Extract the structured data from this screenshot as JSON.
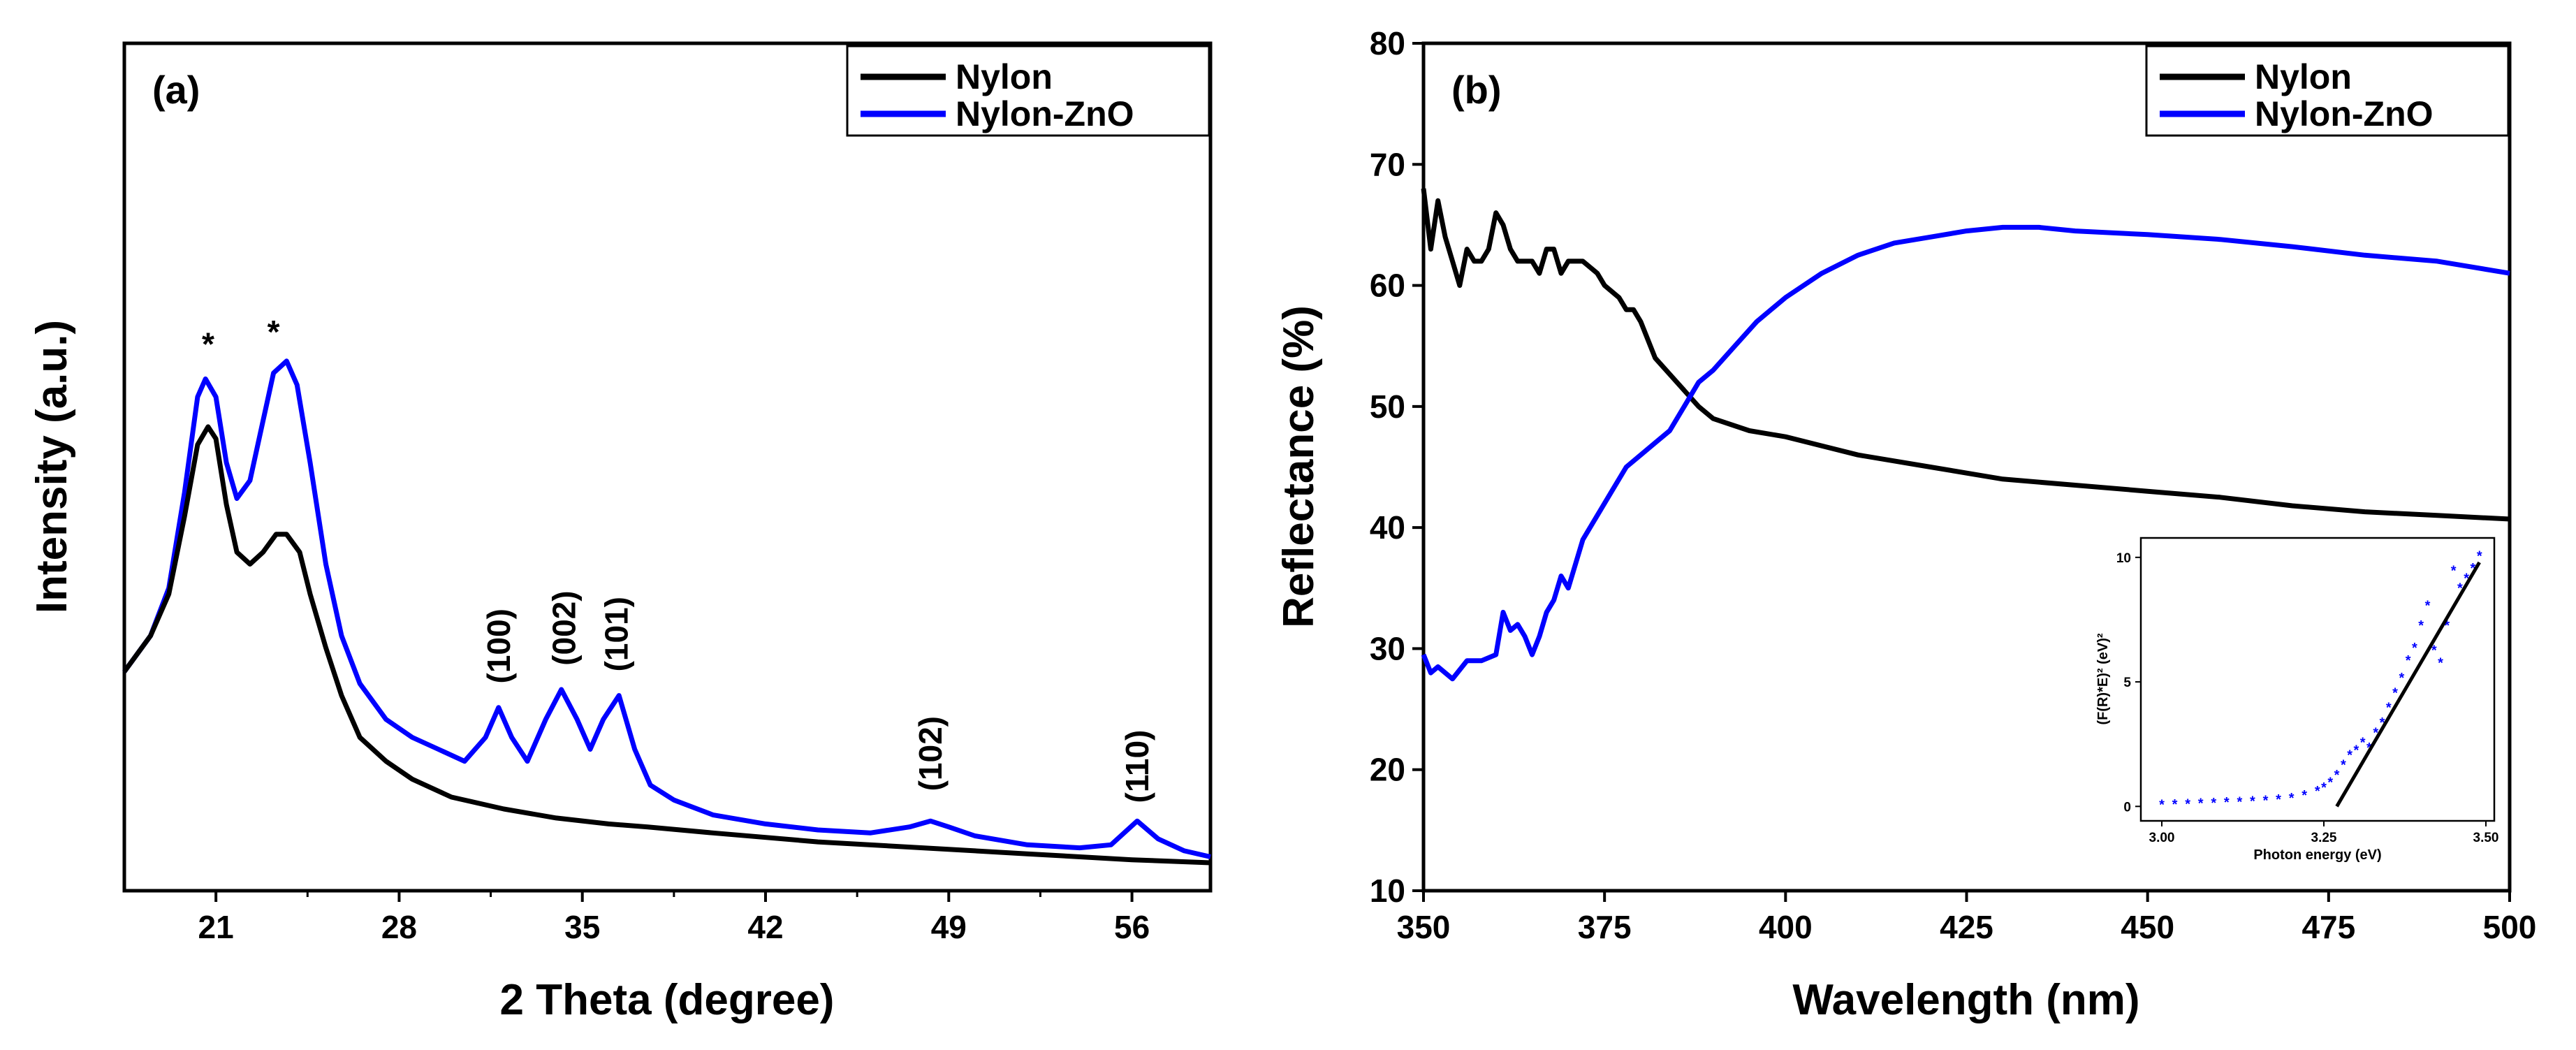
{
  "chart_data": [
    {
      "id": "xrd",
      "type": "line",
      "panel_label": "(a)",
      "xlabel": "2 Theta (degree)",
      "ylabel": "Intensity (a.u.)",
      "xlim": [
        17.5,
        59
      ],
      "ylim": [
        0,
        100
      ],
      "xticks": [
        21,
        28,
        35,
        42,
        49,
        56
      ],
      "xtick_labels": [
        "21",
        "28",
        "35",
        "42",
        "49",
        "56"
      ],
      "show_y_ticks": false,
      "grid": false,
      "legend_position": "top-right",
      "series": [
        {
          "name": "Nylon",
          "color": "#000000",
          "x": [
            17.5,
            18.5,
            19.2,
            19.8,
            20.3,
            20.7,
            21.0,
            21.4,
            21.8,
            22.3,
            22.8,
            23.3,
            23.7,
            24.2,
            24.6,
            25.2,
            25.8,
            26.5,
            27.5,
            28.5,
            30.0,
            32.0,
            34.0,
            36.0,
            37.5,
            40.0,
            44.0,
            48.0,
            52.0,
            56.0,
            59.0
          ],
          "y": [
            32,
            38,
            45,
            58,
            70,
            73,
            71,
            60,
            52,
            50,
            52,
            55,
            55,
            52,
            45,
            36,
            28,
            21,
            17,
            14,
            11,
            9,
            7.5,
            6.5,
            6,
            5,
            3.5,
            2.5,
            1.5,
            0.5,
            0
          ]
        },
        {
          "name": "Nylon-ZnO",
          "color": "#0000ff",
          "x": [
            17.5,
            18.5,
            19.2,
            19.8,
            20.3,
            20.6,
            21.0,
            21.4,
            21.8,
            22.3,
            22.8,
            23.2,
            23.7,
            24.1,
            24.6,
            25.2,
            25.8,
            26.5,
            27.5,
            28.5,
            29.5,
            30.5,
            31.3,
            31.8,
            32.3,
            32.9,
            33.6,
            34.2,
            34.8,
            35.3,
            35.8,
            36.4,
            37.0,
            37.6,
            38.5,
            40.0,
            42.0,
            44.0,
            46.0,
            47.5,
            48.3,
            49.0,
            50.0,
            52.0,
            54.0,
            55.2,
            56.2,
            57.0,
            58.0,
            59.0
          ],
          "y": [
            32,
            38,
            46,
            62,
            78,
            81,
            78,
            67,
            61,
            64,
            74,
            82,
            84,
            80,
            67,
            50,
            38,
            30,
            24,
            21,
            19,
            17,
            21,
            26,
            21,
            17,
            24,
            29,
            24,
            19,
            24,
            28,
            19,
            13,
            10.5,
            8,
            6.5,
            5.5,
            5,
            6,
            7,
            6,
            4.5,
            3,
            2.5,
            3,
            7,
            4,
            2,
            1
          ]
        }
      ],
      "annotations": [
        {
          "text": "*",
          "x": 20.7,
          "y": 85
        },
        {
          "text": "*",
          "x": 23.2,
          "y": 87
        },
        {
          "text": "(100)",
          "x": 31.8,
          "y": 30,
          "rotate": true
        },
        {
          "text": "(002)",
          "x": 34.3,
          "y": 33,
          "rotate": true
        },
        {
          "text": "(101)",
          "x": 36.3,
          "y": 32,
          "rotate": true
        },
        {
          "text": "(102)",
          "x": 48.3,
          "y": 12,
          "rotate": true
        },
        {
          "text": "(110)",
          "x": 56.2,
          "y": 10,
          "rotate": true
        }
      ]
    },
    {
      "id": "reflectance",
      "type": "line",
      "panel_label": "(b)",
      "xlabel": "Wavelength (nm)",
      "ylabel": "Reflectance (%)",
      "xlim": [
        350,
        500
      ],
      "ylim": [
        10,
        80
      ],
      "xticks": [
        350,
        375,
        400,
        425,
        450,
        475,
        500
      ],
      "xtick_labels": [
        "350",
        "375",
        "400",
        "425",
        "450",
        "475",
        "500"
      ],
      "yticks": [
        10,
        20,
        30,
        40,
        50,
        60,
        70,
        80
      ],
      "ytick_labels": [
        "10",
        "20",
        "30",
        "40",
        "50",
        "60",
        "70",
        "80"
      ],
      "grid": false,
      "legend_position": "top-right",
      "series": [
        {
          "name": "Nylon",
          "color": "#000000",
          "x": [
            350,
            351,
            352,
            353,
            354,
            355,
            356,
            357,
            358,
            359,
            360,
            361,
            362,
            363,
            365,
            366,
            367,
            368,
            369,
            370,
            372,
            374,
            375,
            377,
            378,
            379,
            380,
            382,
            385,
            388,
            390,
            395,
            400,
            410,
            420,
            430,
            440,
            450,
            460,
            470,
            480,
            490,
            500
          ],
          "y": [
            68,
            63,
            67,
            64,
            62,
            60,
            63,
            62,
            62,
            63,
            66,
            65,
            63,
            62,
            62,
            61,
            63,
            63,
            61,
            62,
            62,
            61,
            60,
            59,
            58,
            58,
            57,
            54,
            52,
            50,
            49,
            48,
            47.5,
            46,
            45,
            44,
            43.5,
            43,
            42.5,
            41.8,
            41.3,
            41,
            40.7
          ]
        },
        {
          "name": "Nylon-ZnO",
          "color": "#0000ff",
          "x": [
            350,
            351,
            352,
            354,
            356,
            358,
            360,
            361,
            362,
            363,
            364,
            365,
            366,
            367,
            368,
            369,
            370,
            372,
            374,
            376,
            378,
            380,
            382,
            384,
            386,
            388,
            390,
            393,
            396,
            400,
            405,
            410,
            415,
            420,
            425,
            430,
            435,
            440,
            450,
            460,
            470,
            480,
            490,
            500
          ],
          "y": [
            29.5,
            28,
            28.5,
            27.5,
            29,
            29,
            29.5,
            33,
            31.5,
            32,
            31,
            29.5,
            31,
            33,
            34,
            36,
            35,
            39,
            41,
            43,
            45,
            46,
            47,
            48,
            50,
            52,
            53,
            55,
            57,
            59,
            61,
            62.5,
            63.5,
            64,
            64.5,
            64.8,
            64.8,
            64.5,
            64.2,
            63.8,
            63.2,
            62.5,
            62,
            61
          ]
        }
      ],
      "inset": {
        "xlabel": "Photon energy (eV)",
        "ylabel": "(F(R)*E)² (eV)²",
        "xlim": [
          3.0,
          3.5
        ],
        "ylim": [
          -0.3,
          10.5
        ],
        "xticks": [
          3.0,
          3.25,
          3.5
        ],
        "xtick_labels": [
          "3.00",
          "3.25",
          "3.50"
        ],
        "yticks": [
          0,
          5,
          10
        ],
        "ytick_labels": [
          "0",
          "5",
          "10"
        ],
        "points_color": "#0000ff",
        "fit_color": "#000000",
        "points": {
          "x": [
            3.0,
            3.02,
            3.04,
            3.06,
            3.08,
            3.1,
            3.12,
            3.14,
            3.16,
            3.18,
            3.2,
            3.22,
            3.24,
            3.25,
            3.26,
            3.27,
            3.28,
            3.29,
            3.3,
            3.31,
            3.32,
            3.33,
            3.34,
            3.35,
            3.36,
            3.37,
            3.38,
            3.39,
            3.4,
            3.41,
            3.42,
            3.43,
            3.44,
            3.45,
            3.46,
            3.47,
            3.48,
            3.49
          ],
          "y": [
            0.1,
            0.12,
            0.14,
            0.16,
            0.18,
            0.2,
            0.22,
            0.25,
            0.28,
            0.32,
            0.38,
            0.48,
            0.65,
            0.8,
            1.0,
            1.3,
            1.7,
            2.1,
            2.3,
            2.6,
            2.4,
            3.0,
            3.4,
            4.0,
            4.6,
            5.2,
            5.9,
            6.4,
            7.3,
            8.1,
            6.3,
            5.8,
            7.3,
            9.5,
            8.8,
            9.2,
            9.6,
            10.1
          ]
        },
        "fit": {
          "x": [
            3.27,
            3.49
          ],
          "y": [
            0,
            9.8
          ]
        }
      }
    }
  ]
}
